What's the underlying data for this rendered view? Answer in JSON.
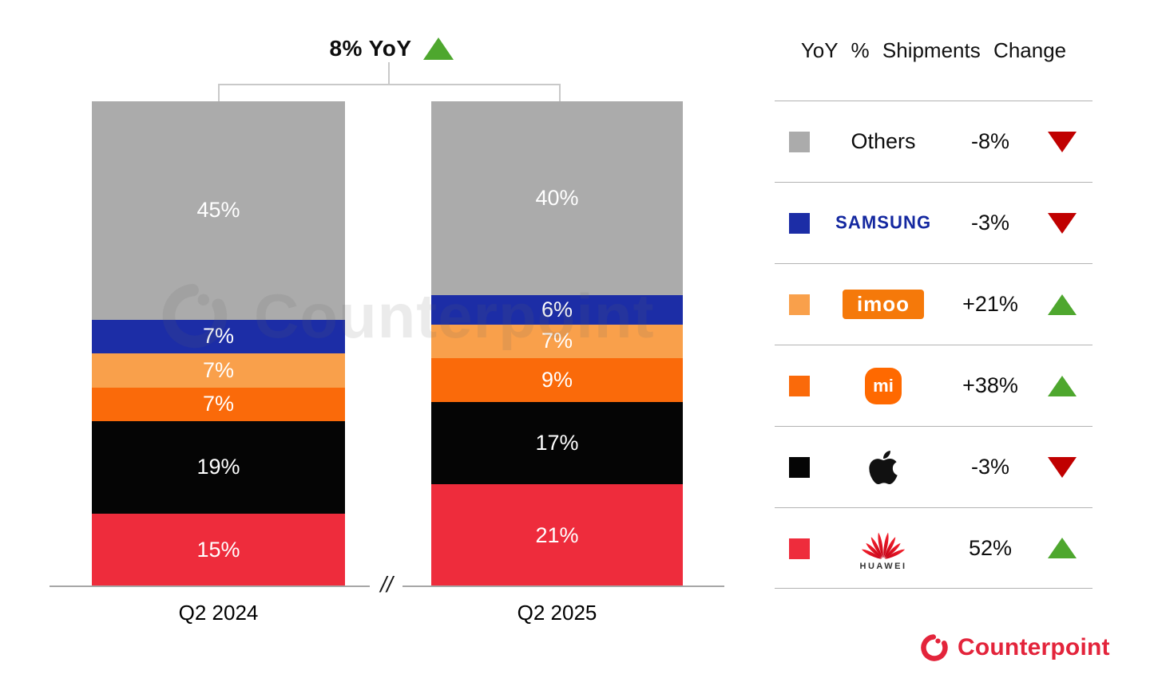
{
  "title": {
    "label": "8% YoY",
    "direction": "up"
  },
  "chart_data": {
    "type": "bar",
    "stacked": true,
    "unit": "%",
    "title": "8% YoY",
    "categories": [
      "Q2 2024",
      "Q2 2025"
    ],
    "series": [
      {
        "name": "Others",
        "color": "#ababab",
        "values": [
          45,
          40
        ]
      },
      {
        "name": "Samsung",
        "color": "#1c2da6",
        "values": [
          7,
          6
        ]
      },
      {
        "name": "imoo",
        "color": "#f9a04b",
        "values": [
          7,
          7
        ]
      },
      {
        "name": "Xiaomi",
        "color": "#fa6a0a",
        "values": [
          7,
          9
        ]
      },
      {
        "name": "Apple",
        "color": "#050505",
        "values": [
          19,
          17
        ]
      },
      {
        "name": "Huawei",
        "color": "#ee2c3c",
        "values": [
          15,
          21
        ]
      }
    ],
    "axis_break": "//",
    "ylim": [
      0,
      100
    ],
    "grid": false,
    "legend_position": "right"
  },
  "legend": {
    "title": "YoY % Shipments Change",
    "rows": [
      {
        "brand": "Others",
        "logo_text": "Others",
        "change": "-8%",
        "direction": "down",
        "chip_color": "#ababab"
      },
      {
        "brand": "Samsung",
        "logo_text": "SAMSUNG",
        "change": "-3%",
        "direction": "down",
        "chip_color": "#1c2da6"
      },
      {
        "brand": "imoo",
        "logo_text": "imoo",
        "change": "+21%",
        "direction": "up",
        "chip_color": "#f9a04b"
      },
      {
        "brand": "Xiaomi",
        "logo_text": "mi",
        "change": "+38%",
        "direction": "up",
        "chip_color": "#fa6a0a"
      },
      {
        "brand": "Apple",
        "logo_text": "",
        "change": "-3%",
        "direction": "down",
        "chip_color": "#050505"
      },
      {
        "brand": "Huawei",
        "logo_text": "HUAWEI",
        "change": "52%",
        "direction": "up",
        "chip_color": "#ee2c3c"
      }
    ]
  },
  "watermark": {
    "text": "Counterpoint"
  },
  "footer": {
    "logo_text": "Counterpoint"
  },
  "colors": {
    "up_green": "#4ea72e",
    "down_red": "#c00000",
    "samsung_blue": "#1428a0",
    "imoo_orange": "#f5790a",
    "mi_orange": "#ff6900",
    "huawei_red": "#e01f2b",
    "counterpoint_red": "#e3243b",
    "axis_gray": "#a6a6a6"
  }
}
